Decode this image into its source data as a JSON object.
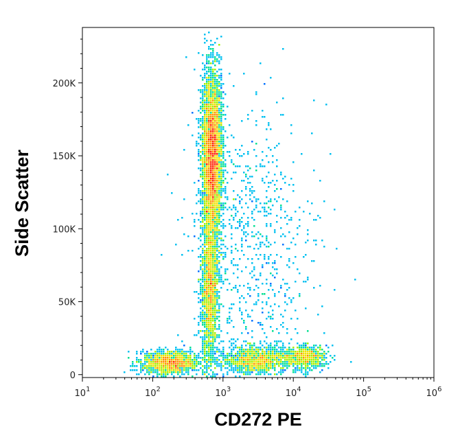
{
  "chart_data": {
    "type": "scatter",
    "subtype": "flow-cytometry-density-dot-plot",
    "xlabel": "CD272 PE",
    "ylabel": "Side Scatter",
    "x_scale": "log",
    "x_range": [
      10,
      1000000
    ],
    "x_ticks": [
      {
        "value": 10,
        "base": "10",
        "exp": "1"
      },
      {
        "value": 100,
        "base": "10",
        "exp": "2"
      },
      {
        "value": 1000,
        "base": "10",
        "exp": "3"
      },
      {
        "value": 10000,
        "base": "10",
        "exp": "4"
      },
      {
        "value": 100000,
        "base": "10",
        "exp": "5"
      },
      {
        "value": 1000000,
        "base": "10",
        "exp": "6"
      }
    ],
    "y_scale": "linear",
    "y_range": [
      -2000,
      238000
    ],
    "y_ticks": [
      {
        "value": 0,
        "label": "0"
      },
      {
        "value": 50000,
        "label": "50K"
      },
      {
        "value": 100000,
        "label": "100K"
      },
      {
        "value": 150000,
        "label": "150K"
      },
      {
        "value": 200000,
        "label": "200K"
      }
    ],
    "grid": false,
    "legend": "none",
    "color_map": [
      "#0000c8",
      "#0070ff",
      "#00c0f0",
      "#00e090",
      "#a0f000",
      "#f0e000",
      "#ff9000",
      "#ff2000"
    ],
    "populations": [
      {
        "x_center": 700,
        "y_center": 150000,
        "x_spread_log": 0.07,
        "y_spread": 28000,
        "weight": 0.42
      },
      {
        "x_center": 650,
        "y_center": 60000,
        "x_spread_log": 0.06,
        "y_spread": 28000,
        "weight": 0.18
      },
      {
        "x_center": 180,
        "y_center": 8000,
        "x_spread_log": 0.2,
        "y_spread": 4000,
        "weight": 0.14
      },
      {
        "x_center": 3000,
        "y_center": 10000,
        "x_spread_log": 0.25,
        "y_spread": 4500,
        "weight": 0.12
      },
      {
        "x_center": 15000,
        "y_center": 12000,
        "x_spread_log": 0.15,
        "y_spread": 4000,
        "weight": 0.07
      },
      {
        "x_center": 2500,
        "y_center": 90000,
        "x_spread_log": 0.45,
        "y_spread": 45000,
        "weight": 0.07
      }
    ]
  }
}
